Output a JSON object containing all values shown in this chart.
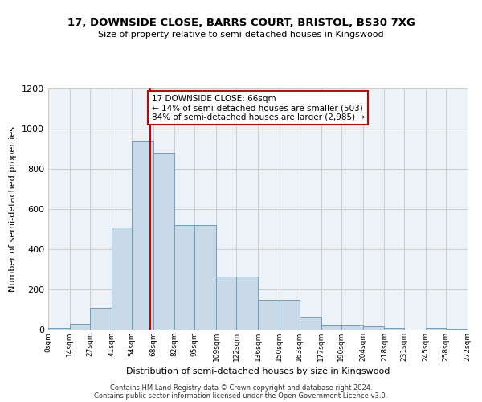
{
  "title": "17, DOWNSIDE CLOSE, BARRS COURT, BRISTOL, BS30 7XG",
  "subtitle": "Size of property relative to semi-detached houses in Kingswood",
  "xlabel": "Distribution of semi-detached houses by size in Kingswood",
  "ylabel": "Number of semi-detached properties",
  "annotation_line1": "17 DOWNSIDE CLOSE: 66sqm",
  "annotation_line2": "← 14% of semi-detached houses are smaller (503)",
  "annotation_line3": "84% of semi-detached houses are larger (2,985) →",
  "footer1": "Contains HM Land Registry data © Crown copyright and database right 2024.",
  "footer2": "Contains public sector information licensed under the Open Government Licence v3.0.",
  "bar_edges": [
    0,
    14,
    27,
    41,
    54,
    68,
    82,
    95,
    109,
    122,
    136,
    150,
    163,
    177,
    190,
    204,
    218,
    231,
    245,
    258,
    272
  ],
  "bar_heights": [
    10,
    30,
    110,
    510,
    940,
    880,
    520,
    520,
    265,
    265,
    150,
    150,
    65,
    25,
    25,
    15,
    10,
    0,
    10,
    5
  ],
  "property_size": 66,
  "bar_color": "#c9d9e8",
  "bar_edge_color": "#6a9fc0",
  "vline_color": "#cc0000",
  "grid_color": "#cccccc",
  "background_color": "#edf2f7",
  "ylim": [
    0,
    1200
  ],
  "yticks": [
    0,
    200,
    400,
    600,
    800,
    1000,
    1200
  ],
  "tick_labels": [
    "0sqm",
    "14sqm",
    "27sqm",
    "41sqm",
    "54sqm",
    "68sqm",
    "82sqm",
    "95sqm",
    "109sqm",
    "122sqm",
    "136sqm",
    "150sqm",
    "163sqm",
    "177sqm",
    "190sqm",
    "204sqm",
    "218sqm",
    "231sqm",
    "245sqm",
    "258sqm",
    "272sqm"
  ],
  "title_fontsize": 9.5,
  "subtitle_fontsize": 8,
  "ylabel_fontsize": 8,
  "xlabel_fontsize": 8,
  "ytick_fontsize": 8,
  "xtick_fontsize": 6.5,
  "footer_fontsize": 6,
  "annotation_fontsize": 7.5
}
